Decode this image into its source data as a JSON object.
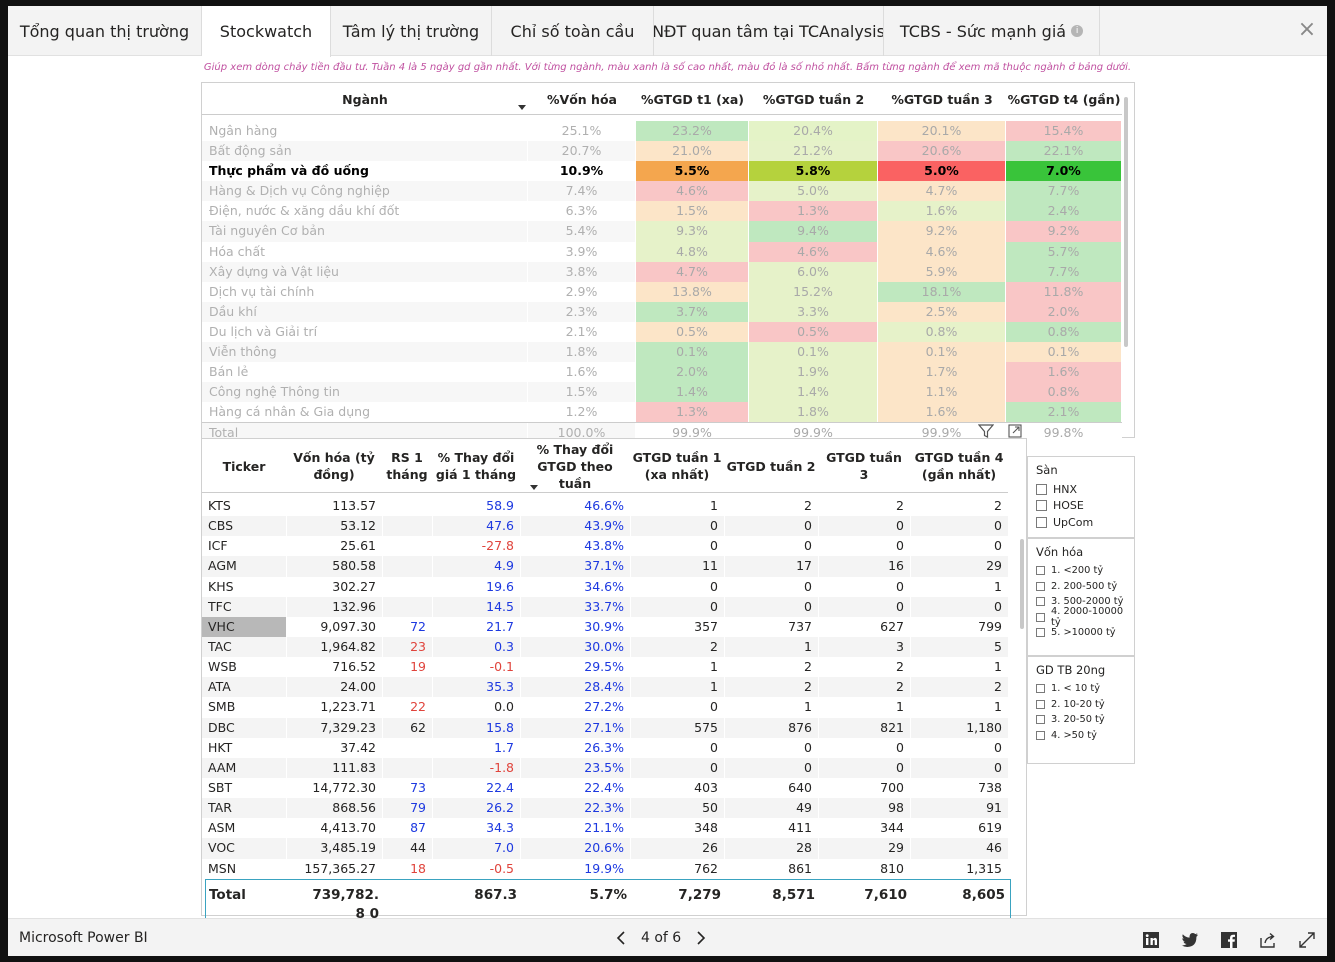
{
  "tabs": [
    {
      "label": "Tổng quan thị trường"
    },
    {
      "label": "Stockwatch"
    },
    {
      "label": "Tâm lý thị trường"
    },
    {
      "label": "Chỉ số toàn cầu"
    },
    {
      "label": "NĐT quan tâm tại TCAnalysis"
    },
    {
      "label": "TCBS - Sức mạnh giá"
    }
  ],
  "active_tab": 1,
  "close_icon": "close-icon",
  "subtitle": "Giúp xem dòng chảy tiền đầu tư. Tuần 4 là 5 ngày gd gần nhất. Với từng ngành, màu xanh là số cao nhất, màu đỏ là số nhỏ nhất. Bấm từng ngành để xem mã thuộc ngành ở bảng dưới.",
  "sector_table": {
    "headers": [
      "Ngành",
      "%Vốn hóa",
      "%GTGD t1 (xa)",
      "%GTGD tuần 2",
      "%GTGD tuần 3",
      "%GTGD t4 (gần)"
    ],
    "rows": [
      {
        "name": "Ngân hàng",
        "cap": "25.1%",
        "g": [
          "23.2%",
          "20.4%",
          "20.1%",
          "15.4%"
        ],
        "c": [
          "#bfe8bf",
          "#e4f3c7",
          "#fce5c8",
          "#f9c6c6"
        ]
      },
      {
        "name": "Bất động sản",
        "cap": "20.7%",
        "g": [
          "21.0%",
          "21.2%",
          "20.6%",
          "22.1%"
        ],
        "c": [
          "#fce5c8",
          "#e6f2c9",
          "#f9c6c6",
          "#bfe8bf"
        ]
      },
      {
        "name": "Thực phẩm và đồ uống",
        "cap": "10.9%",
        "g": [
          "5.5%",
          "5.8%",
          "5.0%",
          "7.0%"
        ],
        "c": [
          "#f4a64e",
          "#b5d23d",
          "#fa6262",
          "#39c43a"
        ],
        "hi": true
      },
      {
        "name": "Hàng & Dịch vụ Công nghiệp",
        "cap": "7.4%",
        "g": [
          "4.6%",
          "5.0%",
          "4.7%",
          "7.7%"
        ],
        "c": [
          "#f9c6c6",
          "#e6f2c9",
          "#fce5c8",
          "#bfe8bf"
        ]
      },
      {
        "name": "Điện, nước & xăng dầu khí đốt",
        "cap": "6.3%",
        "g": [
          "1.5%",
          "1.3%",
          "1.6%",
          "2.4%"
        ],
        "c": [
          "#fce5c8",
          "#f9c6c6",
          "#e6f2c9",
          "#bfe8bf"
        ]
      },
      {
        "name": "Tài nguyên Cơ bản",
        "cap": "5.4%",
        "g": [
          "9.3%",
          "9.4%",
          "9.2%",
          "9.2%"
        ],
        "c": [
          "#e6f2c9",
          "#bfe8bf",
          "#fce5c8",
          "#f9c6c6"
        ]
      },
      {
        "name": "Hóa chất",
        "cap": "3.9%",
        "g": [
          "4.8%",
          "4.6%",
          "4.6%",
          "5.7%"
        ],
        "c": [
          "#e6f2c9",
          "#f9c6c6",
          "#fce5c8",
          "#bfe8bf"
        ]
      },
      {
        "name": "Xây dựng và Vật liệu",
        "cap": "3.8%",
        "g": [
          "4.7%",
          "6.0%",
          "5.9%",
          "7.7%"
        ],
        "c": [
          "#f9c6c6",
          "#e6f2c9",
          "#fce5c8",
          "#bfe8bf"
        ]
      },
      {
        "name": "Dịch vụ tài chính",
        "cap": "2.9%",
        "g": [
          "13.8%",
          "15.2%",
          "18.1%",
          "11.8%"
        ],
        "c": [
          "#fce5c8",
          "#e6f2c9",
          "#bfe8bf",
          "#f9c6c6"
        ]
      },
      {
        "name": "Dầu khí",
        "cap": "2.3%",
        "g": [
          "3.7%",
          "3.3%",
          "2.5%",
          "2.0%"
        ],
        "c": [
          "#bfe8bf",
          "#e6f2c9",
          "#fce5c8",
          "#f9c6c6"
        ]
      },
      {
        "name": "Du lịch và Giải trí",
        "cap": "2.1%",
        "g": [
          "0.5%",
          "0.5%",
          "0.8%",
          "0.8%"
        ],
        "c": [
          "#fce5c8",
          "#f9c6c6",
          "#e6f2c9",
          "#bfe8bf"
        ]
      },
      {
        "name": "Viễn thông",
        "cap": "1.8%",
        "g": [
          "0.1%",
          "0.1%",
          "0.1%",
          "0.1%"
        ],
        "c": [
          "#bfe8bf",
          "#e6f2c9",
          "#fce5c8",
          "#fce5c8"
        ]
      },
      {
        "name": "Bán lẻ",
        "cap": "1.6%",
        "g": [
          "2.0%",
          "1.9%",
          "1.7%",
          "1.6%"
        ],
        "c": [
          "#bfe8bf",
          "#e6f2c9",
          "#fce5c8",
          "#f9c6c6"
        ]
      },
      {
        "name": "Công nghệ Thông tin",
        "cap": "1.5%",
        "g": [
          "1.4%",
          "1.4%",
          "1.1%",
          "0.8%"
        ],
        "c": [
          "#bfe8bf",
          "#e6f2c9",
          "#fce5c8",
          "#f9c6c6"
        ]
      },
      {
        "name": "Hàng cá nhân & Gia dụng",
        "cap": "1.2%",
        "g": [
          "1.3%",
          "1.8%",
          "1.6%",
          "2.1%"
        ],
        "c": [
          "#f9c6c6",
          "#e6f2c9",
          "#fce5c8",
          "#bfe8bf"
        ]
      },
      {
        "name": "Total",
        "cap": "100.0%",
        "g": [
          "99.9%",
          "99.9%",
          "99.9%",
          "99.8%"
        ],
        "c": [
          "#ffffff",
          "#ffffff",
          "#ffffff",
          "#ffffff"
        ],
        "total": true
      }
    ]
  },
  "ticker_table": {
    "headers": [
      "Ticker",
      "Vốn hóa (tỷ đồng)",
      "RS 1 tháng",
      "% Thay đổi giá 1 tháng",
      "% Thay đổi GTGD theo tuần",
      "GTGD tuần 1 (xa nhất)",
      "GTGD tuần 2",
      "GTGD tuần 3",
      "GTGD tuần 4 (gần nhất)"
    ],
    "rows": [
      {
        "t": "KTS",
        "cap": "113.57",
        "rs": "",
        "rsc": "",
        "p": "58.9",
        "pc": "blue",
        "w": "46.6%",
        "g1": "1",
        "g2": "2",
        "g3": "2",
        "g4": "2"
      },
      {
        "t": "CBS",
        "cap": "53.12",
        "rs": "",
        "rsc": "",
        "p": "47.6",
        "pc": "blue",
        "w": "43.9%",
        "g1": "0",
        "g2": "0",
        "g3": "0",
        "g4": "0"
      },
      {
        "t": "ICF",
        "cap": "25.61",
        "rs": "",
        "rsc": "",
        "p": "-27.8",
        "pc": "red",
        "w": "43.8%",
        "g1": "0",
        "g2": "0",
        "g3": "0",
        "g4": "0"
      },
      {
        "t": "AGM",
        "cap": "580.58",
        "rs": "",
        "rsc": "",
        "p": "4.9",
        "pc": "blue",
        "w": "37.1%",
        "g1": "11",
        "g2": "17",
        "g3": "16",
        "g4": "29"
      },
      {
        "t": "KHS",
        "cap": "302.27",
        "rs": "",
        "rsc": "",
        "p": "19.6",
        "pc": "blue",
        "w": "34.6%",
        "g1": "0",
        "g2": "0",
        "g3": "0",
        "g4": "1"
      },
      {
        "t": "TFC",
        "cap": "132.96",
        "rs": "",
        "rsc": "",
        "p": "14.5",
        "pc": "blue",
        "w": "33.7%",
        "g1": "0",
        "g2": "0",
        "g3": "0",
        "g4": "0"
      },
      {
        "t": "VHC",
        "cap": "9,097.30",
        "rs": "72",
        "rsc": "blue",
        "p": "21.7",
        "pc": "blue",
        "w": "30.9%",
        "g1": "357",
        "g2": "737",
        "g3": "627",
        "g4": "799",
        "sel": true
      },
      {
        "t": "TAC",
        "cap": "1,964.82",
        "rs": "23",
        "rsc": "red",
        "p": "0.3",
        "pc": "blue",
        "w": "30.0%",
        "g1": "2",
        "g2": "1",
        "g3": "3",
        "g4": "5"
      },
      {
        "t": "WSB",
        "cap": "716.52",
        "rs": "19",
        "rsc": "red",
        "p": "-0.1",
        "pc": "red",
        "w": "29.5%",
        "g1": "1",
        "g2": "2",
        "g3": "2",
        "g4": "1"
      },
      {
        "t": "ATA",
        "cap": "24.00",
        "rs": "",
        "rsc": "",
        "p": "35.3",
        "pc": "blue",
        "w": "28.4%",
        "g1": "1",
        "g2": "2",
        "g3": "2",
        "g4": "2"
      },
      {
        "t": "SMB",
        "cap": "1,223.71",
        "rs": "22",
        "rsc": "red",
        "p": "0.0",
        "pc": "",
        "w": "27.2%",
        "g1": "0",
        "g2": "1",
        "g3": "1",
        "g4": "1"
      },
      {
        "t": "DBC",
        "cap": "7,329.23",
        "rs": "62",
        "rsc": "",
        "p": "15.8",
        "pc": "blue",
        "w": "27.1%",
        "g1": "575",
        "g2": "876",
        "g3": "821",
        "g4": "1,180"
      },
      {
        "t": "HKT",
        "cap": "37.42",
        "rs": "",
        "rsc": "",
        "p": "1.7",
        "pc": "blue",
        "w": "26.3%",
        "g1": "0",
        "g2": "0",
        "g3": "0",
        "g4": "0"
      },
      {
        "t": "AAM",
        "cap": "111.83",
        "rs": "",
        "rsc": "",
        "p": "-1.8",
        "pc": "red",
        "w": "23.5%",
        "g1": "0",
        "g2": "0",
        "g3": "0",
        "g4": "0"
      },
      {
        "t": "SBT",
        "cap": "14,772.30",
        "rs": "73",
        "rsc": "blue",
        "p": "22.4",
        "pc": "blue",
        "w": "22.4%",
        "g1": "403",
        "g2": "640",
        "g3": "700",
        "g4": "738"
      },
      {
        "t": "TAR",
        "cap": "868.56",
        "rs": "79",
        "rsc": "blue",
        "p": "26.2",
        "pc": "blue",
        "w": "22.3%",
        "g1": "50",
        "g2": "49",
        "g3": "98",
        "g4": "91"
      },
      {
        "t": "ASM",
        "cap": "4,413.70",
        "rs": "87",
        "rsc": "blue",
        "p": "34.3",
        "pc": "blue",
        "w": "21.1%",
        "g1": "348",
        "g2": "411",
        "g3": "344",
        "g4": "619"
      },
      {
        "t": "VOC",
        "cap": "3,485.19",
        "rs": "44",
        "rsc": "",
        "p": "7.0",
        "pc": "blue",
        "w": "20.6%",
        "g1": "26",
        "g2": "28",
        "g3": "29",
        "g4": "46"
      },
      {
        "t": "MSN",
        "cap": "157,365.27",
        "rs": "18",
        "rsc": "red",
        "p": "-0.5",
        "pc": "red",
        "w": "19.9%",
        "g1": "762",
        "g2": "861",
        "g3": "810",
        "g4": "1,315"
      }
    ],
    "total": {
      "label": "Total",
      "cap": "739,782.8 0",
      "rs": "",
      "p": "867.3",
      "w": "5.7%",
      "g1": "7,279",
      "g2": "8,571",
      "g3": "7,610",
      "g4": "8,605"
    }
  },
  "slicers": {
    "san": {
      "title": "Sàn",
      "items": [
        "HNX",
        "HOSE",
        "UpCom"
      ]
    },
    "vonhoa": {
      "title": "Vốn hóa",
      "items": [
        "1. <200 tỷ",
        "2. 200-500 tỷ",
        "3. 500-2000 tỷ",
        "4. 2000-10000 tỷ",
        "5. >10000 tỷ"
      ]
    },
    "gdtb": {
      "title": "GD TB 20ng",
      "items": [
        "1. < 10 tỷ",
        "2. 10-20 tỷ",
        "3. 20-50 tỷ",
        "4. >50 tỷ"
      ]
    }
  },
  "footer": {
    "brand": "Microsoft Power BI",
    "page_label": "4 of 6",
    "icons": [
      "linkedin-icon",
      "twitter-icon",
      "facebook-icon",
      "share-icon",
      "fullscreen-icon"
    ]
  }
}
